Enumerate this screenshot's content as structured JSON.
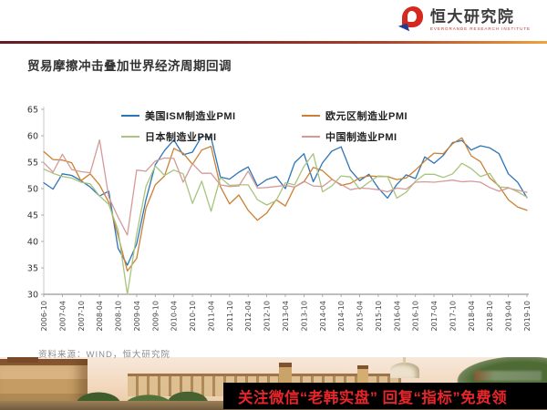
{
  "header": {
    "brand_cn": "恒大研究院",
    "brand_en": "EVERGRANDE RESEARCH INSTITUTE"
  },
  "title": "贸易摩擦冲击叠加世界经济周期回调",
  "source_note": "资料来源：WIND，恒大研究院",
  "banner": {
    "text": "关注微信“老韩实盘” 回复“指标”免费领",
    "text_color": "#e8262a",
    "bg_color": "#000000"
  },
  "chart_data": {
    "type": "line",
    "title": "",
    "xlabel": "",
    "ylabel": "",
    "ylim": [
      30,
      65
    ],
    "ytick_step": 5,
    "grid": false,
    "legend_position": "top-inside",
    "x": [
      "2006-10",
      "2007-01",
      "2007-04",
      "2007-07",
      "2007-10",
      "2008-01",
      "2008-04",
      "2008-07",
      "2008-10",
      "2009-01",
      "2009-04",
      "2009-07",
      "2009-10",
      "2010-01",
      "2010-04",
      "2010-07",
      "2010-10",
      "2011-01",
      "2011-04",
      "2011-07",
      "2011-10",
      "2012-01",
      "2012-04",
      "2012-07",
      "2012-10",
      "2013-01",
      "2013-04",
      "2013-07",
      "2013-10",
      "2014-01",
      "2014-04",
      "2014-07",
      "2014-10",
      "2015-01",
      "2015-04",
      "2015-07",
      "2015-10",
      "2016-01",
      "2016-04",
      "2016-07",
      "2016-10",
      "2017-01",
      "2017-04",
      "2017-07",
      "2017-10",
      "2018-01",
      "2018-04",
      "2018-07",
      "2018-10",
      "2019-01",
      "2019-04",
      "2019-07",
      "2019-10"
    ],
    "tick_labels": [
      "2006-10",
      "2007-04",
      "2007-10",
      "2008-04",
      "2008-10",
      "2009-04",
      "2009-10",
      "2010-04",
      "2010-10",
      "2011-04",
      "2011-10",
      "2012-04",
      "2012-10",
      "2013-04",
      "2013-10",
      "2014-04",
      "2014-10",
      "2015-04",
      "2015-10",
      "2016-04",
      "2016-10",
      "2017-04",
      "2017-10",
      "2018-04",
      "2018-10",
      "2019-04",
      "2019-10"
    ],
    "series": [
      {
        "name": "美国ISM制造业PMI",
        "color": "#2e75b6",
        "values": [
          51.1,
          49.9,
          52.8,
          52.5,
          51.5,
          50.3,
          48.6,
          49.5,
          38.7,
          35.5,
          39.5,
          47.9,
          54.5,
          57.2,
          59.2,
          56.4,
          56.9,
          59.9,
          59.7,
          52.2,
          51.8,
          53.1,
          54.1,
          50.5,
          51.7,
          52.3,
          50.0,
          54.9,
          56.6,
          51.3,
          54.9,
          57.1,
          57.9,
          53.5,
          51.5,
          52.7,
          50.1,
          48.2,
          50.8,
          52.6,
          51.9,
          56.0,
          54.8,
          56.3,
          58.7,
          59.1,
          57.3,
          58.1,
          57.7,
          56.6,
          52.8,
          51.2,
          48.3
        ]
      },
      {
        "name": "欧元区制造业PMI",
        "color": "#cc8033",
        "values": [
          57.0,
          55.5,
          55.4,
          54.9,
          51.5,
          52.8,
          50.7,
          47.4,
          41.1,
          34.4,
          36.8,
          46.3,
          50.7,
          52.4,
          57.6,
          56.7,
          54.6,
          57.3,
          58.0,
          50.4,
          47.1,
          48.8,
          45.9,
          44.0,
          45.4,
          47.9,
          46.7,
          50.3,
          51.3,
          54.0,
          53.4,
          51.8,
          50.6,
          51.0,
          52.0,
          52.4,
          52.3,
          52.3,
          51.7,
          52.0,
          53.5,
          55.2,
          56.7,
          56.6,
          58.5,
          59.6,
          56.2,
          55.1,
          52.0,
          50.5,
          47.9,
          46.5,
          45.9
        ]
      },
      {
        "name": "日本制造业PMI",
        "color": "#a8c47e",
        "values": [
          53.7,
          52.9,
          52.3,
          52.0,
          51.2,
          50.9,
          48.6,
          47.0,
          42.2,
          29.6,
          41.4,
          50.4,
          54.3,
          52.5,
          53.5,
          52.8,
          47.2,
          51.4,
          45.7,
          52.1,
          50.6,
          50.7,
          50.7,
          47.9,
          46.9,
          47.7,
          51.1,
          50.7,
          54.2,
          56.6,
          49.4,
          50.5,
          52.4,
          52.2,
          49.9,
          51.2,
          52.4,
          52.3,
          48.2,
          49.3,
          51.4,
          52.7,
          52.7,
          52.1,
          52.8,
          54.8,
          53.8,
          52.3,
          52.9,
          50.3,
          50.2,
          49.4,
          48.4
        ]
      },
      {
        "name": "中国制造业PMI",
        "color": "#d59a97",
        "values": [
          54.9,
          53.1,
          56.5,
          53.6,
          53.2,
          53.0,
          59.2,
          48.4,
          44.6,
          41.2,
          53.5,
          53.3,
          55.2,
          55.8,
          55.7,
          51.2,
          54.7,
          52.9,
          52.9,
          50.7,
          50.4,
          50.5,
          53.3,
          50.1,
          50.2,
          50.4,
          50.6,
          50.3,
          51.4,
          50.5,
          50.4,
          51.7,
          50.8,
          49.8,
          50.1,
          50.0,
          49.8,
          49.4,
          50.1,
          49.9,
          51.2,
          51.3,
          51.2,
          51.4,
          51.6,
          51.3,
          51.4,
          51.2,
          50.2,
          49.5,
          50.1,
          49.7,
          49.3
        ]
      }
    ]
  }
}
